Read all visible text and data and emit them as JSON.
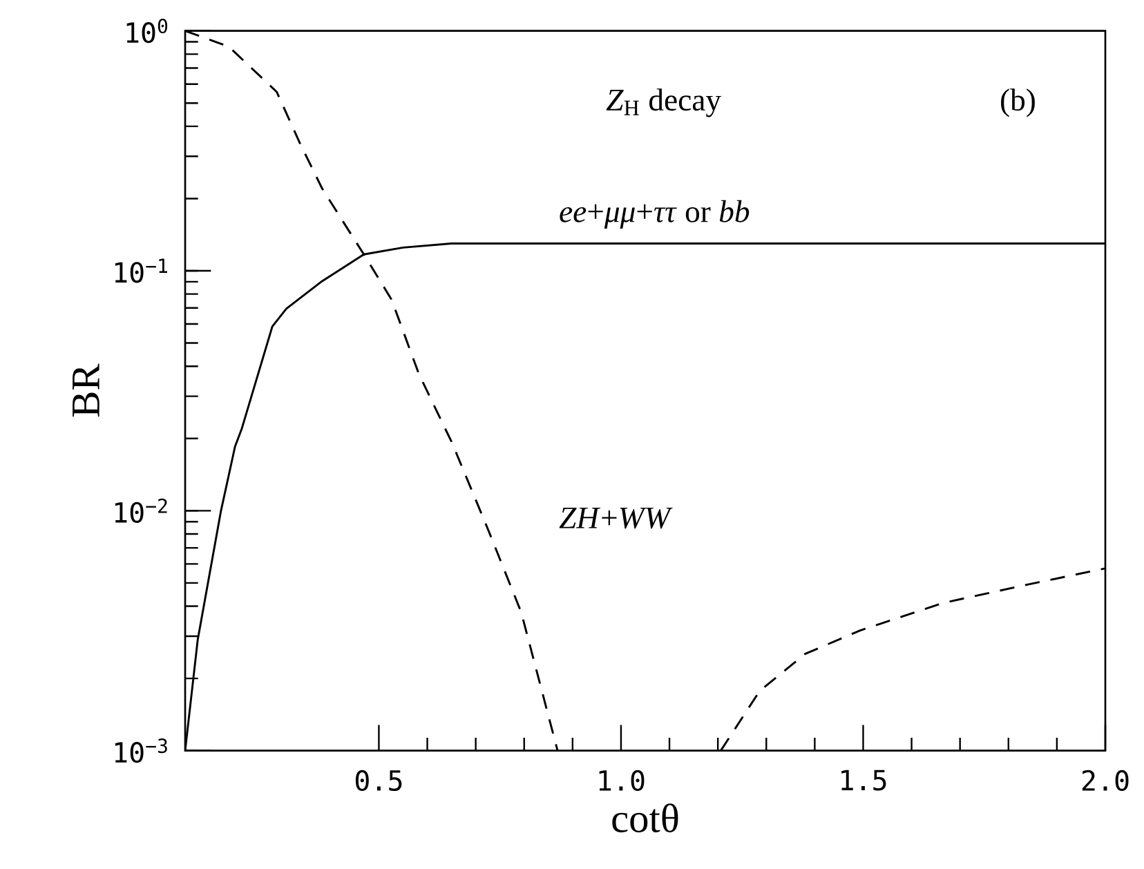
{
  "chart_data": {
    "type": "line",
    "title": "*Z*$_{H}$ decay",
    "xlabel": "cotθ",
    "ylabel": "BR",
    "xlim": [
      0.1,
      2.0
    ],
    "xticks": [
      0.5,
      {
        "value": 1.0,
        "label": "1.0"
      },
      1.5,
      {
        "value": 2.0,
        "label": "2.0"
      }
    ],
    "ylim": [
      0.001,
      1
    ],
    "yticks": [
      {
        "value": 0.001,
        "label": "10$^{−3}$"
      },
      {
        "value": 0.01,
        "label": "10$^{−2}$"
      },
      {
        "value": 0.1,
        "label": "10$^{−1}$"
      },
      {
        "value": 1,
        "label": "10$^{0}$"
      }
    ],
    "log": "y",
    "series": [
      {
        "name": "*ee*+*μμ*+*ττ* or *bb*",
        "color": "#000000",
        "line_style": "solid",
        "x": [
          0.1,
          0.126,
          0.174,
          0.203,
          0.217,
          0.28,
          0.309,
          0.383,
          0.469,
          0.55,
          0.65,
          1.0,
          1.5,
          2.0
        ],
        "values": [
          0.001,
          0.0029,
          0.01,
          0.0185,
          0.022,
          0.0586,
          0.0695,
          0.0906,
          0.117,
          0.125,
          0.13,
          0.13,
          0.13,
          0.13
        ]
      },
      {
        "name": "*ZH*+*WW*",
        "color": "#000000",
        "line_style": "dashed",
        "x": [
          0.1,
          0.19,
          0.289,
          0.337,
          0.383,
          0.469,
          0.526,
          0.583,
          0.651,
          0.726,
          0.794,
          0.869,
          1.0,
          1.206,
          1.286,
          1.38,
          1.494,
          1.666,
          1.837,
          2.0
        ],
        "values": [
          1.0,
          0.86,
          0.557,
          0.34,
          0.22,
          0.117,
          0.076,
          0.037,
          0.0192,
          0.0083,
          0.00377,
          0.001,
          null,
          0.001,
          0.00177,
          0.00253,
          0.00317,
          0.00413,
          0.00491,
          0.00575
        ]
      }
    ],
    "annotations": [
      "(b)"
    ]
  }
}
